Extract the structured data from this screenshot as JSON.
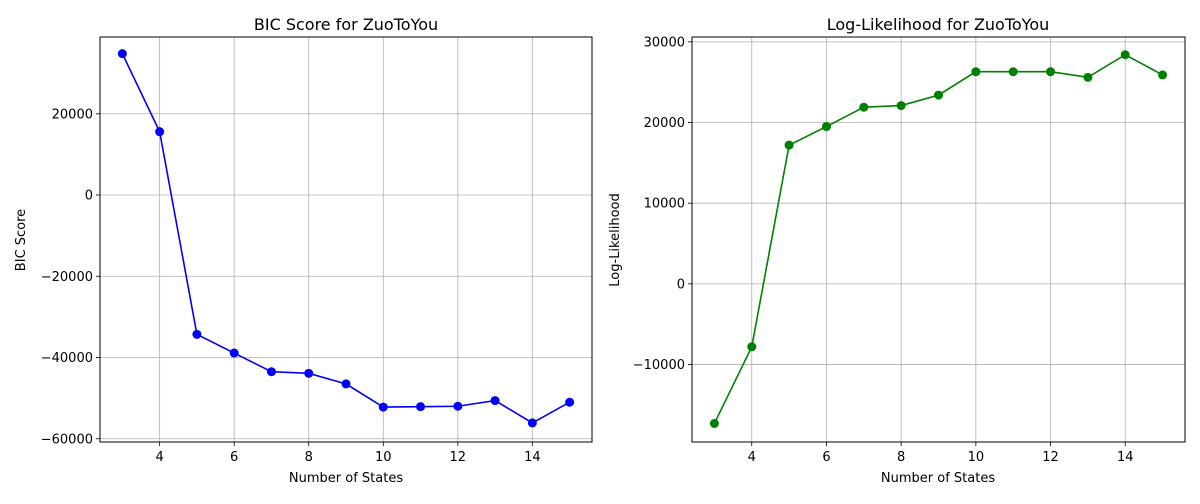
{
  "chart_data": [
    {
      "type": "line",
      "title": "BIC Score for ZuoToYou",
      "xlabel": "Number of States",
      "ylabel": "BIC Score",
      "x": [
        3,
        4,
        5,
        6,
        7,
        8,
        9,
        10,
        11,
        12,
        13,
        14,
        15
      ],
      "series": [
        {
          "values": [
            34800,
            15600,
            -34300,
            -38900,
            -43500,
            -43900,
            -46500,
            -52200,
            -52100,
            -52000,
            -50600,
            -56100,
            -51000
          ],
          "color": "#0000ff",
          "marker": "circle"
        }
      ],
      "xlim": [
        2.4,
        15.6
      ],
      "ylim": [
        -60800,
        38900
      ],
      "xticks": [
        4,
        6,
        8,
        10,
        12,
        14
      ],
      "xtick_labels": [
        "4",
        "6",
        "8",
        "10",
        "12",
        "14"
      ],
      "yticks": [
        20000,
        0,
        -20000,
        -40000,
        -60000
      ],
      "ytick_labels": [
        "20000",
        "0",
        "−20000",
        "−40000",
        "−60000"
      ],
      "grid": true
    },
    {
      "type": "line",
      "title": "Log-Likelihood for ZuoToYou",
      "xlabel": "Number of States",
      "ylabel": "Log-Likelihood",
      "x": [
        3,
        4,
        5,
        6,
        7,
        8,
        9,
        10,
        11,
        12,
        13,
        14,
        15
      ],
      "series": [
        {
          "values": [
            -17300,
            -7800,
            17200,
            19500,
            21900,
            22100,
            23400,
            26300,
            26300,
            26300,
            25600,
            28400,
            25900
          ],
          "color": "#008000",
          "marker": "circle"
        }
      ],
      "xlim": [
        2.4,
        15.6
      ],
      "ylim": [
        -19600,
        30600
      ],
      "xticks": [
        4,
        6,
        8,
        10,
        12,
        14
      ],
      "xtick_labels": [
        "4",
        "6",
        "8",
        "10",
        "12",
        "14"
      ],
      "yticks": [
        30000,
        20000,
        10000,
        0,
        -10000
      ],
      "ytick_labels": [
        "30000",
        "20000",
        "10000",
        "0",
        "−10000"
      ],
      "grid": true
    }
  ]
}
